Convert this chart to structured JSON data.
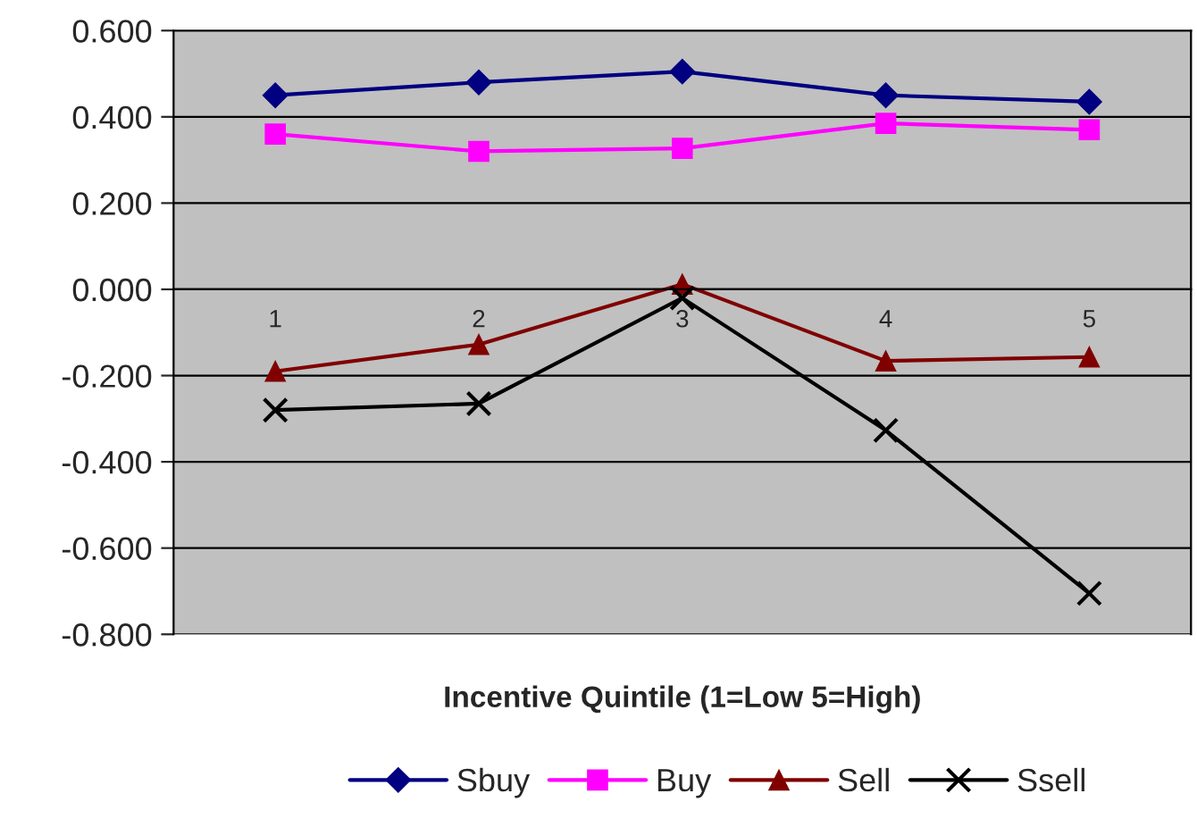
{
  "chart_data": {
    "type": "line",
    "xlabel": "Incentive Quintile (1=Low 5=High)",
    "categories": [
      "1",
      "2",
      "3",
      "4",
      "5"
    ],
    "series": [
      {
        "name": "Sbuy",
        "color": "#000080",
        "marker": "diamond",
        "values": [
          0.45,
          0.48,
          0.505,
          0.45,
          0.435
        ]
      },
      {
        "name": "Buy",
        "color": "#ff00ff",
        "marker": "square",
        "values": [
          0.36,
          0.32,
          0.327,
          0.385,
          0.37
        ]
      },
      {
        "name": "Sell",
        "color": "#800000",
        "marker": "triangle",
        "values": [
          -0.19,
          -0.128,
          0.012,
          -0.166,
          -0.157
        ]
      },
      {
        "name": "Ssell",
        "color": "#000000",
        "marker": "cross",
        "values": [
          -0.28,
          -0.265,
          -0.02,
          -0.327,
          -0.705
        ]
      }
    ],
    "ylim": [
      -0.8,
      0.6
    ],
    "yticks": [
      {
        "value": -0.8,
        "label": "-0.800"
      },
      {
        "value": -0.6,
        "label": "-0.600"
      },
      {
        "value": -0.4,
        "label": "-0.400"
      },
      {
        "value": -0.2,
        "label": "-0.200"
      },
      {
        "value": 0,
        "label": "0.000"
      },
      {
        "value": 0.2,
        "label": "0.200"
      },
      {
        "value": 0.4,
        "label": "0.400"
      },
      {
        "value": 0.6,
        "label": "0.600"
      }
    ],
    "grid": "y",
    "legend": "bottom",
    "line_style": "solid"
  }
}
